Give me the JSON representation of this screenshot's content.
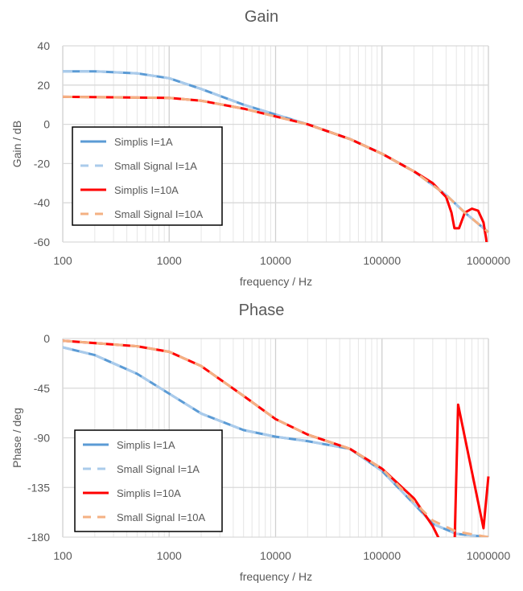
{
  "chart_data": [
    {
      "type": "line",
      "title": "Gain",
      "xlabel": "frequency / Hz",
      "ylabel": "Gain / dB",
      "xscale": "log",
      "xlim": [
        100,
        1000000
      ],
      "ylim": [
        -60,
        40
      ],
      "xticks": [
        "100",
        "1000",
        "10000",
        "100000",
        "1000000"
      ],
      "yticks": [
        "40",
        "20",
        "0",
        "-20",
        "-40",
        "-60"
      ],
      "grid": true,
      "legend": "bottom-left",
      "series": [
        {
          "name": "Simplis I=1A",
          "color": "#5b9bd5",
          "dash": false,
          "x": [
            100,
            200,
            500,
            1000,
            2000,
            5000,
            10000,
            20000,
            50000,
            100000,
            200000,
            400000,
            600000,
            1000000
          ],
          "y": [
            27,
            27,
            26,
            23.5,
            18,
            10,
            5,
            0,
            -7.5,
            -15,
            -24,
            -36,
            -45,
            -55
          ]
        },
        {
          "name": "Small Signal I=1A",
          "color": "#aacbeb",
          "dash": true,
          "x": [
            100,
            200,
            500,
            1000,
            2000,
            5000,
            10000,
            20000,
            50000,
            100000,
            200000,
            400000,
            600000,
            1000000
          ],
          "y": [
            27,
            27,
            26,
            23.5,
            18,
            10,
            5,
            0,
            -7.5,
            -15,
            -24,
            -36,
            -45,
            -55
          ]
        },
        {
          "name": "Simplis I=10A",
          "color": "#ff0000",
          "dash": false,
          "x": [
            100,
            1000,
            2000,
            5000,
            10000,
            20000,
            50000,
            100000,
            200000,
            300000,
            400000,
            450000,
            480000,
            530000,
            600000,
            700000,
            800000,
            900000,
            950000,
            960000
          ],
          "y": [
            14,
            13.5,
            12,
            8,
            4,
            0,
            -7.5,
            -15,
            -24,
            -30,
            -37,
            -45,
            -53,
            -53,
            -45,
            -43,
            -44,
            -50,
            -58,
            -60
          ]
        },
        {
          "name": "Small Signal I=10A",
          "color": "#f4b183",
          "dash": true,
          "x": [
            100,
            1000,
            2000,
            5000,
            10000,
            20000,
            50000,
            100000,
            200000,
            400000,
            600000,
            1000000
          ],
          "y": [
            14,
            13.5,
            12,
            8,
            4,
            0,
            -7.5,
            -15,
            -24,
            -36,
            -45,
            -55
          ]
        }
      ]
    },
    {
      "type": "line",
      "title": "Phase",
      "xlabel": "frequency / Hz",
      "ylabel": "Phase / deg",
      "xscale": "log",
      "xlim": [
        100,
        1000000
      ],
      "ylim": [
        -180,
        0
      ],
      "xticks": [
        "100",
        "1000",
        "10000",
        "100000",
        "1000000"
      ],
      "yticks": [
        "0",
        "-45",
        "-90",
        "-135",
        "-180"
      ],
      "grid": true,
      "legend": "bottom-left",
      "series": [
        {
          "name": "Simplis I=1A",
          "color": "#5b9bd5",
          "dash": false,
          "x": [
            100,
            200,
            500,
            1000,
            2000,
            5000,
            10000,
            20000,
            50000,
            100000,
            200000,
            300000,
            500000,
            1000000
          ],
          "y": [
            -8,
            -15,
            -32,
            -50,
            -68,
            -83,
            -89,
            -93,
            -100,
            -120,
            -150,
            -168,
            -177,
            -180
          ]
        },
        {
          "name": "Small Signal I=1A",
          "color": "#aacbeb",
          "dash": true,
          "x": [
            100,
            200,
            500,
            1000,
            2000,
            5000,
            10000,
            20000,
            50000,
            100000,
            200000,
            300000,
            500000,
            1000000
          ],
          "y": [
            -8,
            -15,
            -32,
            -50,
            -68,
            -83,
            -89,
            -93,
            -100,
            -120,
            -150,
            -168,
            -177,
            -180
          ]
        },
        {
          "name": "Simplis I=10A",
          "color": "#ff0000",
          "dash": false,
          "x": [
            100,
            500,
            1000,
            2000,
            5000,
            10000,
            20000,
            50000,
            100000,
            200000,
            300000,
            380000,
            480000,
            520000,
            900000,
            1000000
          ],
          "y": [
            -2,
            -7,
            -12,
            -25,
            -52,
            -73,
            -87,
            -100,
            -118,
            -145,
            -170,
            -190,
            -190,
            -60,
            -172,
            -125
          ]
        },
        {
          "name": "Small Signal I=10A",
          "color": "#f4b183",
          "dash": true,
          "x": [
            100,
            500,
            1000,
            2000,
            5000,
            10000,
            20000,
            50000,
            100000,
            200000,
            300000,
            500000,
            1000000
          ],
          "y": [
            -2,
            -7,
            -12,
            -25,
            -52,
            -73,
            -87,
            -100,
            -118,
            -148,
            -165,
            -175,
            -180
          ]
        }
      ]
    }
  ]
}
